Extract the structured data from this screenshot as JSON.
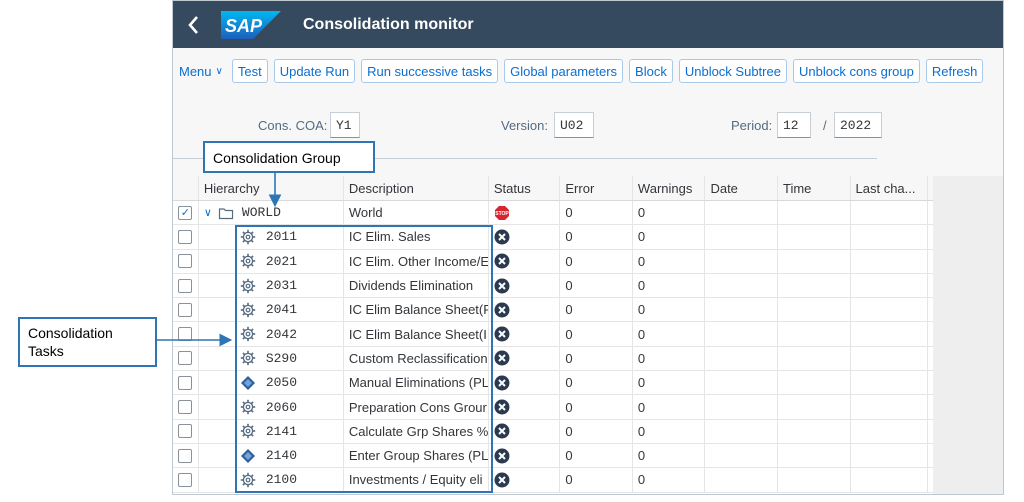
{
  "shellbar": {
    "back_icon": "chevron-left-icon",
    "logo_text": "SAP",
    "title": "Consolidation monitor",
    "color": "#354a5f"
  },
  "toolbar": {
    "menu_label": "Menu",
    "buttons": [
      "Test",
      "Update Run",
      "Run successive tasks",
      "Global parameters",
      "Block",
      "Unblock Subtree",
      "Unblock cons group",
      "Refresh"
    ]
  },
  "filters": {
    "coa_label": "Cons. COA:",
    "coa_value": "Y1",
    "version_label": "Version:",
    "version_value": "U02",
    "period_label": "Period:",
    "period_value": "12",
    "year_sep": "/",
    "year_value": "2022"
  },
  "table": {
    "columns": [
      "Hierarchy",
      "Description",
      "Status",
      "Error",
      "Warnings",
      "Date",
      "Time",
      "Last cha..."
    ],
    "root": {
      "node": "WORLD",
      "description": "World",
      "status_icon": "stop-icon",
      "error": "0",
      "warnings": "0",
      "checked": true
    },
    "rows": [
      {
        "node": "2011",
        "icon": "gear-icon",
        "description": "IC Elim. Sales",
        "status_icon": "error-x-icon",
        "error": "0",
        "warnings": "0"
      },
      {
        "node": "2021",
        "icon": "gear-icon",
        "description": "IC Elim. Other Income/E",
        "status_icon": "error-x-icon",
        "error": "0",
        "warnings": "0"
      },
      {
        "node": "2031",
        "icon": "gear-icon",
        "description": "Dividends Elimination",
        "status_icon": "error-x-icon",
        "error": "0",
        "warnings": "0"
      },
      {
        "node": "2041",
        "icon": "gear-icon",
        "description": "IC Elim Balance Sheet(F",
        "status_icon": "error-x-icon",
        "error": "0",
        "warnings": "0"
      },
      {
        "node": "2042",
        "icon": "gear-icon",
        "description": "IC Elim Balance Sheet(I",
        "status_icon": "error-x-icon",
        "error": "0",
        "warnings": "0"
      },
      {
        "node": "S290",
        "icon": "gear-icon",
        "description": "Custom Reclassification",
        "status_icon": "error-x-icon",
        "error": "0",
        "warnings": "0"
      },
      {
        "node": "2050",
        "icon": "diamond-icon",
        "description": "Manual Eliminations (PL",
        "status_icon": "error-x-icon",
        "error": "0",
        "warnings": "0"
      },
      {
        "node": "2060",
        "icon": "gear-icon",
        "description": "Preparation Cons Grour",
        "status_icon": "error-x-icon",
        "error": "0",
        "warnings": "0"
      },
      {
        "node": "2141",
        "icon": "gear-icon",
        "description": "Calculate Grp Shares %",
        "status_icon": "error-x-icon",
        "error": "0",
        "warnings": "0"
      },
      {
        "node": "2140",
        "icon": "diamond-icon",
        "description": "Enter Group Shares (PL",
        "status_icon": "error-x-icon",
        "error": "0",
        "warnings": "0"
      },
      {
        "node": "2100",
        "icon": "gear-icon",
        "description": "Investments / Equity eli",
        "status_icon": "error-x-icon",
        "error": "0",
        "warnings": "0"
      }
    ]
  },
  "annotations": {
    "group_label": "Consolidation Group",
    "tasks_label_line1": "Consolidation",
    "tasks_label_line2": "Tasks",
    "color": "#2e75b6"
  }
}
